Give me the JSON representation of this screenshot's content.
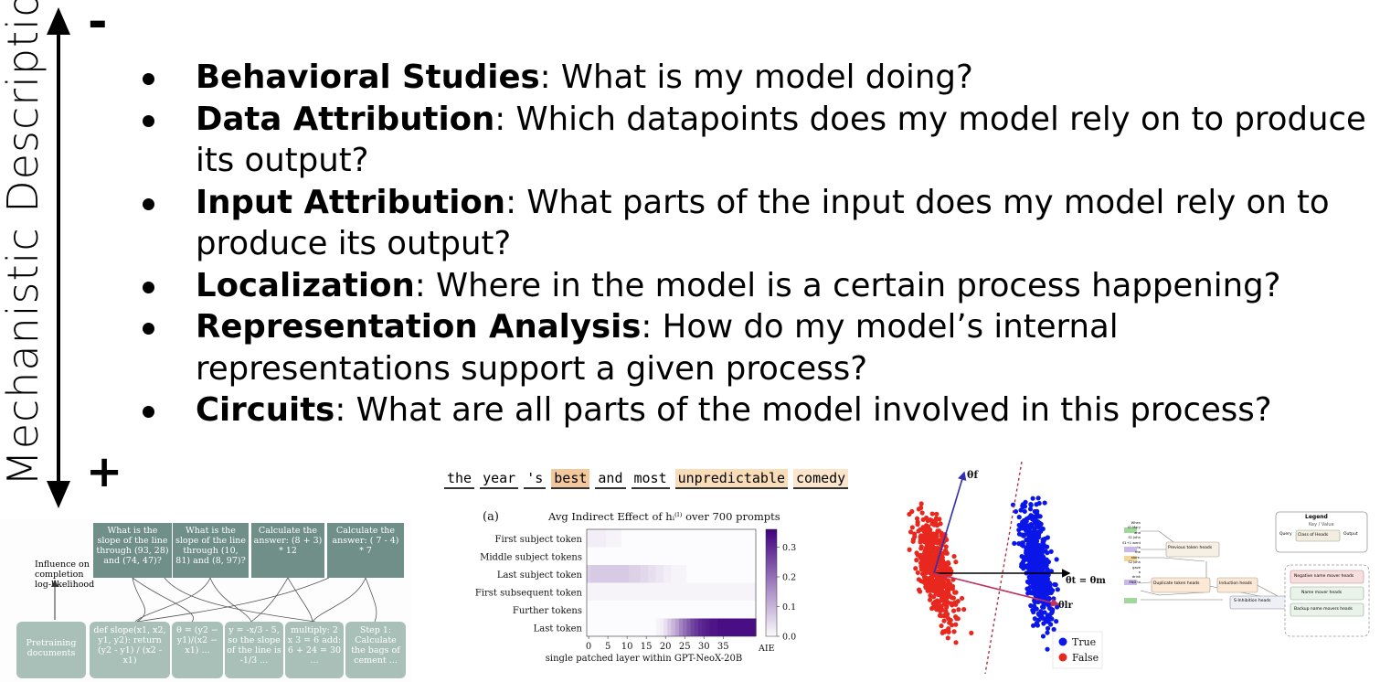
{
  "axis": {
    "title": "Mechanistic Description",
    "top_sign": "-",
    "bottom_sign": "+"
  },
  "bullets": [
    {
      "term": "Behavioral Studies",
      "text": ": What is my model doing?"
    },
    {
      "term": "Data Attribution",
      "text": ": Which datapoints does my model rely on to produce its output?"
    },
    {
      "term": "Input Attribution",
      "text": ": What parts of the input does my model rely on to produce its output?"
    },
    {
      "term": "Localization",
      "text": ": Where in the model is a certain process happening?"
    },
    {
      "term": "Representation Analysis",
      "text": ": How do my model’s internal representations support a given process?"
    },
    {
      "term": "Circuits",
      "text": ": What are all parts of the model involved in this process?"
    }
  ],
  "fig_attribution": {
    "side_label": "Influence on completion log-likelihood",
    "top_boxes": [
      "What is the slope of the line through (93, 28) and (74, 47)?",
      "What is the slope of the line through (10, 81) and (8, 97)?",
      "Calculate the answer: (8 + 3) * 12",
      "Calculate the answer: ( 7 - 4) * 7"
    ],
    "bottom_boxes": [
      "Pretraining documents",
      "def slope(x1, x2, y1, y2): return (y2 - y1) / (x2 - x1)",
      "θ = (y2 − y1)/(x2 − x1) ...",
      "y = -x/3 - 5, so the slope of the line is -1/3 ...",
      "multiply: 2 x 3 = 6 add: 6 + 24 = 30 ...",
      "Step 1: Calculate the bags of cement ..."
    ]
  },
  "fig_tokens": {
    "tokens": [
      {
        "text": "the",
        "color": "#ffffff"
      },
      {
        "text": "year",
        "color": "#ffffff"
      },
      {
        "text": "'s",
        "color": "#ffffff"
      },
      {
        "text": "best",
        "color": "#f3c89d"
      },
      {
        "text": "and",
        "color": "#ffffff"
      },
      {
        "text": "most",
        "color": "#ffffff"
      },
      {
        "text": "unpredictable",
        "color": "#f9dcb8"
      },
      {
        "text": "comedy",
        "color": "#fbe6cc"
      }
    ]
  },
  "chart_data": [
    {
      "type": "heatmap",
      "panel_label": "(a)",
      "title": "Avg Indirect Effect of h_i^(l) over 700 prompts",
      "xlabel": "single patched layer within GPT-NeoX-20B",
      "colorbar_label": "AIE",
      "rows": [
        "First subject token",
        "Middle subject tokens",
        "Last subject token",
        "First subsequent token",
        "Further tokens",
        "Last token"
      ],
      "x_ticks": [
        0,
        5,
        10,
        15,
        20,
        25,
        30,
        35
      ],
      "colorbar_ticks": [
        0.0,
        0.1,
        0.2,
        0.3
      ],
      "colorbar_range": [
        0.0,
        0.36
      ],
      "layers": 44,
      "values": {
        "First subject token": [
          0.02,
          0.02,
          0.02,
          0.02,
          0.02,
          0.01,
          0.01,
          0.01,
          0.01,
          0,
          0,
          0,
          0,
          0,
          0,
          0,
          0,
          0,
          0,
          0,
          0,
          0,
          0,
          0,
          0,
          0,
          0,
          0,
          0,
          0,
          0,
          0,
          0,
          0,
          0,
          0,
          0,
          0,
          0,
          0,
          0,
          0,
          0,
          0
        ],
        "Middle subject tokens": [
          0,
          0,
          0,
          0,
          0,
          0,
          0,
          0,
          0,
          0,
          0,
          0,
          0,
          0,
          0,
          0,
          0,
          0,
          0,
          0,
          0,
          0,
          0,
          0,
          0,
          0,
          0,
          0,
          0,
          0,
          0,
          0,
          0,
          0,
          0,
          0,
          0,
          0,
          0,
          0,
          0,
          0,
          0,
          0
        ],
        "Last subject token": [
          0.06,
          0.07,
          0.07,
          0.07,
          0.07,
          0.07,
          0.07,
          0.07,
          0.07,
          0.07,
          0.07,
          0.06,
          0.06,
          0.06,
          0.05,
          0.05,
          0.04,
          0.04,
          0.03,
          0.03,
          0.02,
          0.02,
          0.01,
          0.01,
          0.01,
          0.01,
          0,
          0,
          0,
          0,
          0,
          0,
          0,
          0,
          0,
          0,
          0,
          0,
          0,
          0,
          0,
          0,
          0,
          0
        ],
        "First subsequent token": [
          0.01,
          0.01,
          0.01,
          0.01,
          0.01,
          0.01,
          0.01,
          0.01,
          0.01,
          0.01,
          0.01,
          0.01,
          0.01,
          0.01,
          0.01,
          0.01,
          0.01,
          0.01,
          0.01,
          0.01,
          0.01,
          0.01,
          0.01,
          0.01,
          0.01,
          0.01,
          0.01,
          0.01,
          0.01,
          0.01,
          0.01,
          0.01,
          0.01,
          0.01,
          0.01,
          0.01,
          0.01,
          0.01,
          0.01,
          0.01,
          0.01,
          0.01,
          0.01,
          0.01
        ],
        "Further tokens": [
          0,
          0,
          0,
          0,
          0,
          0,
          0,
          0,
          0,
          0,
          0,
          0,
          0,
          0,
          0,
          0,
          0,
          0,
          0,
          0,
          0,
          0,
          0,
          0,
          0,
          0,
          0,
          0,
          0,
          0,
          0,
          0,
          0,
          0,
          0,
          0,
          0,
          0,
          0,
          0,
          0,
          0,
          0,
          0
        ],
        "Last token": [
          0,
          0,
          0,
          0,
          0,
          0,
          0,
          0,
          0,
          0,
          0,
          0,
          0,
          0,
          0,
          0,
          0,
          0,
          0.01,
          0.02,
          0.04,
          0.07,
          0.1,
          0.13,
          0.17,
          0.2,
          0.23,
          0.26,
          0.28,
          0.3,
          0.31,
          0.32,
          0.33,
          0.33,
          0.34,
          0.34,
          0.34,
          0.34,
          0.34,
          0.34,
          0.34,
          0.34,
          0.34,
          0.34
        ]
      }
    },
    {
      "type": "scatter",
      "title": "",
      "xlabel": "",
      "ylabel": "",
      "legend": [
        {
          "name": "True",
          "color": "#0b16e8"
        },
        {
          "name": "False",
          "color": "#e8281e"
        }
      ],
      "vector_labels": [
        "θf",
        "θt = θmm",
        "θlr"
      ]
    }
  ],
  "fig_circuit": {
    "legend_title": "Legend",
    "legend_sub": "Key / Value",
    "legend_query": "Query",
    "legend_class": "Class of Heads",
    "legend_output": "Output",
    "tokens": [
      "When",
      "IO Mary",
      "and",
      "S1 John",
      "S1+1 went",
      "to",
      "the",
      "store.",
      "S2 John",
      "gave",
      "a",
      "drink",
      "END to"
    ],
    "heads": [
      "Previous token heads",
      "Duplicate token heads",
      "Induction heads",
      "S-Inhibition heads",
      "Negative name mover heads",
      "Name mover heads",
      "Backup name movers heads"
    ]
  }
}
